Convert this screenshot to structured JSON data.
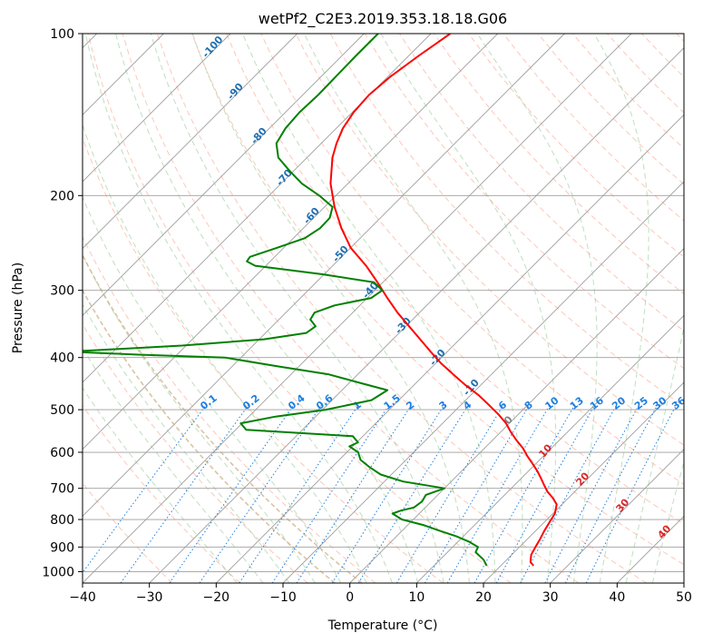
{
  "chart_data": {
    "type": "line",
    "subtype": "skew-t log-p diagram",
    "title": "wetPf2_C2E3.2019.353.18.18.G06",
    "xlabel": "Temperature (°C)",
    "ylabel": "Pressure (hPa)",
    "xlim": [
      -40,
      50
    ],
    "ylim": [
      1050,
      100
    ],
    "y_scale": "log",
    "grid": true,
    "x_ticks": [
      -40,
      -30,
      -20,
      -10,
      0,
      10,
      20,
      30,
      40,
      50
    ],
    "x_tick_labels": [
      "−40",
      "−30",
      "−20",
      "−10",
      "0",
      "10",
      "20",
      "30",
      "40",
      "50"
    ],
    "y_ticks": [
      100,
      200,
      300,
      400,
      500,
      600,
      700,
      800,
      900,
      1000
    ],
    "y_tick_labels": [
      "100",
      "200",
      "300",
      "400",
      "500",
      "600",
      "700",
      "800",
      "900",
      "1000"
    ],
    "colors": {
      "temperature": "#ff0000",
      "dewpoint": "#008000",
      "isotherm": "#9e9e9e",
      "dry_adiabat": "#fa8264",
      "moist_adiabat": "#7fbf7f",
      "mixing_ratio": "#1e7fe0",
      "ccl_adiabat": "#d2b48c",
      "label_dark_blue": "#1f6fb0",
      "label_red": "#d62728"
    },
    "series": [
      {
        "key": "temperature",
        "p": [
          975,
          960,
          930,
          900,
          870,
          840,
          810,
          780,
          750,
          730,
          710,
          690,
          670,
          650,
          630,
          610,
          590,
          570,
          550,
          530,
          510,
          490,
          470,
          450,
          430,
          410,
          390,
          370,
          350,
          330,
          310,
          290,
          270,
          250,
          230,
          210,
          190,
          170,
          160,
          150,
          140,
          130,
          120,
          110,
          100
        ],
        "t": [
          24.9,
          23.9,
          22.9,
          22.4,
          21.9,
          21.3,
          20.8,
          20.3,
          19.2,
          17.7,
          15.9,
          14.4,
          12.9,
          11.3,
          9.5,
          7.6,
          5.8,
          3.6,
          1.5,
          -0.5,
          -3.0,
          -5.8,
          -8.8,
          -12.3,
          -15.7,
          -19.2,
          -22.5,
          -25.9,
          -29.5,
          -33.3,
          -37.0,
          -40.8,
          -45.0,
          -50.0,
          -54.3,
          -58.5,
          -62.6,
          -66.2,
          -67.7,
          -69.0,
          -69.8,
          -70.1,
          -69.6,
          -68.5,
          -67.1
        ]
      },
      {
        "key": "dewpoint",
        "p": [
          975,
          950,
          920,
          900,
          880,
          860,
          840,
          820,
          800,
          780,
          770,
          760,
          740,
          720,
          700,
          680,
          660,
          640,
          620,
          600,
          585,
          575,
          560,
          545,
          530,
          515,
          500,
          480,
          460,
          445,
          430,
          415,
          400,
          395,
          390,
          380,
          370,
          360,
          350,
          340,
          330,
          320,
          310,
          300,
          290,
          280,
          270,
          265,
          260,
          250,
          240,
          230,
          220,
          210,
          200,
          190,
          180,
          170,
          160,
          150,
          140,
          130,
          120,
          110,
          100
        ],
        "td": [
          17.9,
          16.5,
          14.2,
          13.8,
          11.7,
          9.0,
          5.7,
          2.5,
          -1.7,
          -4.0,
          -3.2,
          -1.7,
          -1.4,
          -1.8,
          0.0,
          -7.2,
          -11.6,
          -14.3,
          -16.8,
          -18.3,
          -20.5,
          -19.8,
          -21.5,
          -38.4,
          -40.2,
          -36.0,
          -29.5,
          -24.1,
          -23.2,
          -28.7,
          -34.3,
          -43.3,
          -52.4,
          -65.8,
          -76.6,
          -60.6,
          -49.3,
          -43.9,
          -43.5,
          -45.3,
          -45.7,
          -43.8,
          -39.4,
          -38.9,
          -41.3,
          -50.4,
          -61.6,
          -63.5,
          -63.7,
          -61.0,
          -58.3,
          -57.5,
          -57.6,
          -58.8,
          -62.5,
          -66.9,
          -70.6,
          -74.3,
          -76.7,
          -77.6,
          -77.9,
          -77.7,
          -77.8,
          -77.9,
          -77.9
        ]
      }
    ],
    "mixing_ratio_labels": [
      "0.1",
      "0.2",
      "0.4",
      "0.6",
      "1",
      "1.5",
      "2",
      "3",
      "4",
      "6",
      "8",
      "10",
      "13",
      "16",
      "20",
      "25",
      "30",
      "36"
    ],
    "moist_adiabat_labels": [
      "-100",
      "-90",
      "-80",
      "-70",
      "-60",
      "-50",
      "-40",
      "-30",
      "-20",
      "-10",
      "0",
      "10",
      "20",
      "30",
      "40"
    ]
  }
}
